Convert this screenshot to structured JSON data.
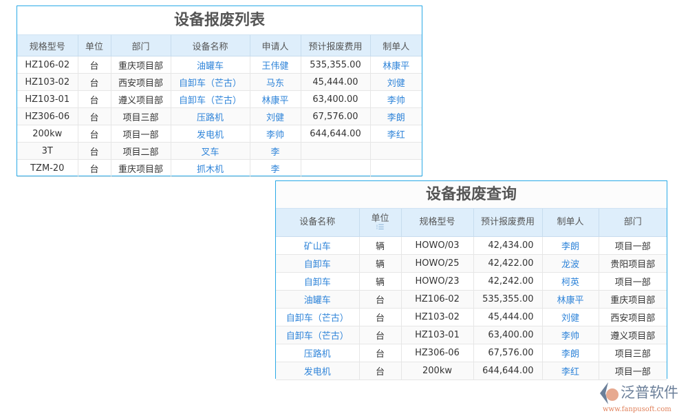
{
  "list": {
    "title": "设备报废列表",
    "headers": [
      "规格型号",
      "单位",
      "部门",
      "设备名称",
      "申请人",
      "预计报废费用",
      "制单人"
    ],
    "rows": [
      [
        "HZ106-02",
        "台",
        "重庆项目部",
        "油罐车",
        "王伟健",
        "535,355.00",
        "林康平"
      ],
      [
        "HZ103-02",
        "台",
        "西安项目部",
        "自卸车（芒古）",
        "马东",
        "45,444.00",
        "刘健"
      ],
      [
        "HZ103-01",
        "台",
        "遵义项目部",
        "自卸车（芒古）",
        "林康平",
        "63,400.00",
        "李帅"
      ],
      [
        "HZ306-06",
        "台",
        "项目三部",
        "压路机",
        "刘健",
        "67,576.00",
        "李朗"
      ],
      [
        "200kw",
        "台",
        "项目一部",
        "发电机",
        "李帅",
        "644,644.00",
        "李红"
      ],
      [
        "3T",
        "台",
        "项目二部",
        "叉车",
        "李",
        "",
        ""
      ],
      [
        "TZM-20",
        "台",
        "重庆项目部",
        "抓木机",
        "李",
        "",
        ""
      ]
    ]
  },
  "query": {
    "title": "设备报废查询",
    "headers": [
      "设备名称",
      "单位",
      "规格型号",
      "预计报废费用",
      "制单人",
      "部门"
    ],
    "sort_icon": "sort-icon",
    "rows": [
      [
        "矿山车",
        "辆",
        "HOWO/03",
        "42,434.00",
        "李朗",
        "项目一部"
      ],
      [
        "自卸车",
        "辆",
        "HOWO/25",
        "42,422.00",
        "龙波",
        "贵阳项目部"
      ],
      [
        "自卸车",
        "辆",
        "HOWO/23",
        "42,242.00",
        "柯英",
        "项目一部"
      ],
      [
        "油罐车",
        "台",
        "HZ106-02",
        "535,355.00",
        "林康平",
        "重庆项目部"
      ],
      [
        "自卸车（芒古）",
        "台",
        "HZ103-02",
        "45,444.00",
        "刘健",
        "西安项目部"
      ],
      [
        "自卸车（芒古）",
        "台",
        "HZ103-01",
        "63,400.00",
        "李帅",
        "遵义项目部"
      ],
      [
        "压路机",
        "台",
        "HZ306-06",
        "67,576.00",
        "李朗",
        "项目三部"
      ],
      [
        "发电机",
        "台",
        "200kw",
        "644,644.00",
        "李红",
        "项目一部"
      ]
    ]
  },
  "watermark": {
    "brand": "泛普软件",
    "url": "www.fanpusoft.com"
  },
  "colors": {
    "accent": "#29a9e6",
    "link": "#2f84d9",
    "header_bg": "#deeefb"
  }
}
